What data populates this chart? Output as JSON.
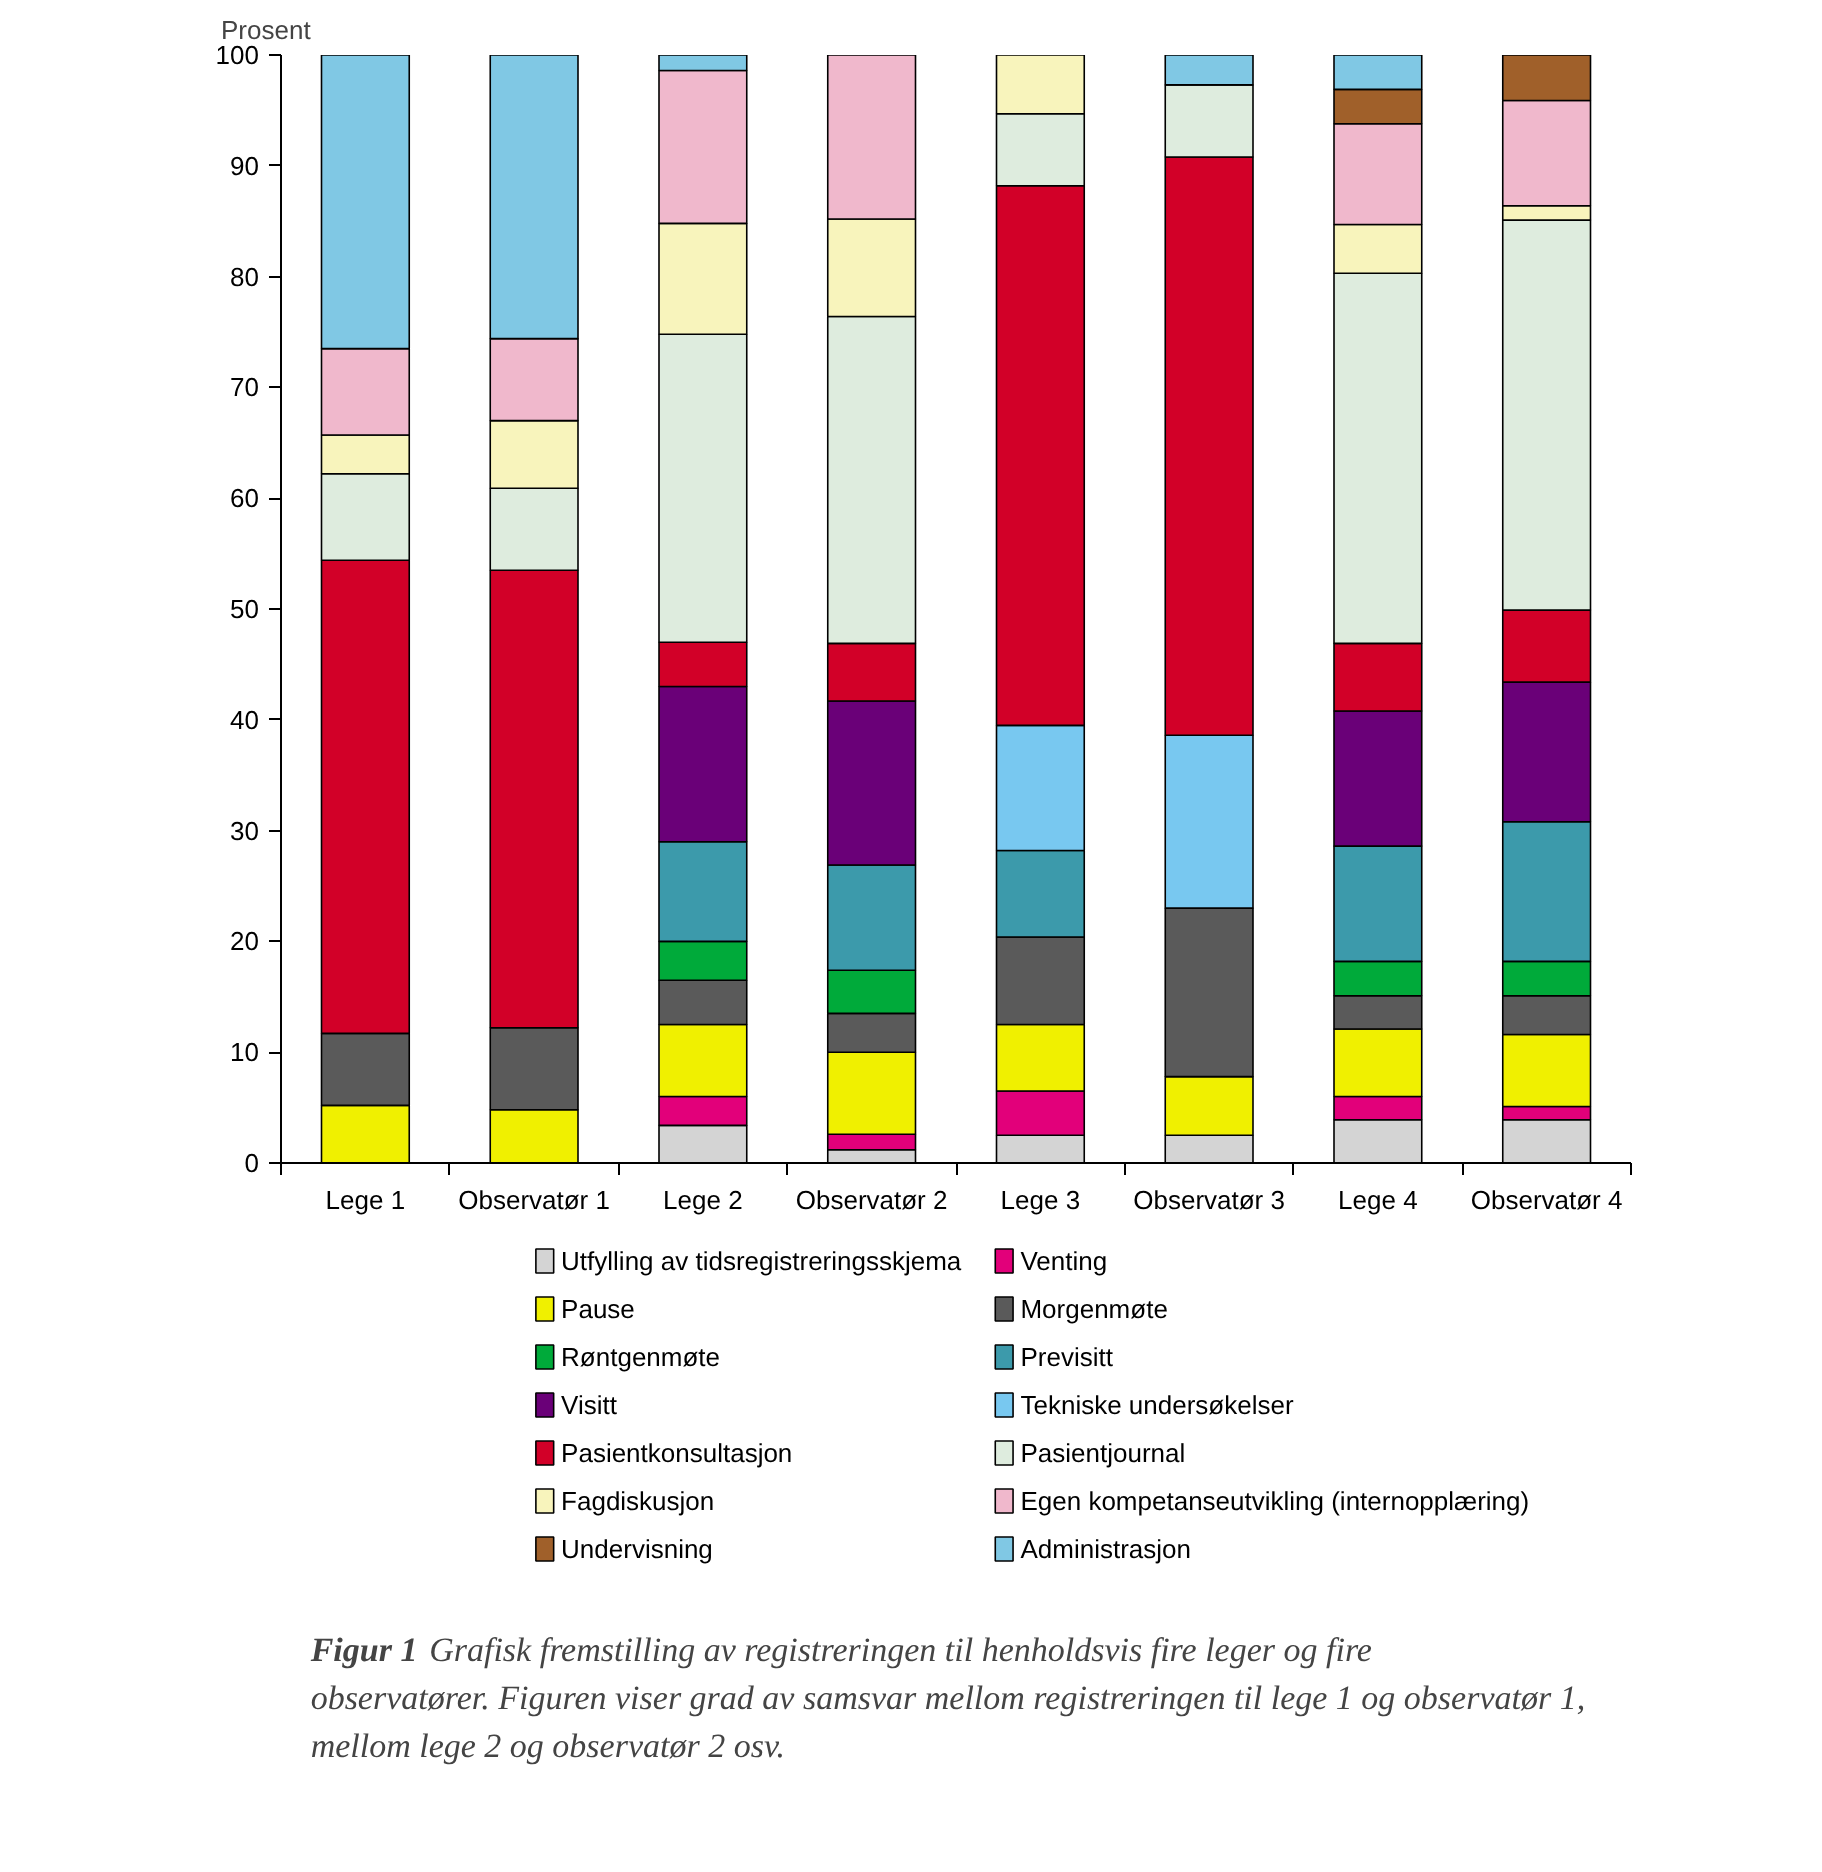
{
  "chart_data": {
    "type": "bar",
    "stacked": true,
    "ylabel": "Prosent",
    "categories": [
      "Lege 1",
      "Observatør 1",
      "Lege 2",
      "Observatør 2",
      "Lege 3",
      "Observatør 3",
      "Lege 4",
      "Observatør 4"
    ],
    "ylim": [
      0,
      100
    ],
    "yticks": [
      0,
      10,
      20,
      30,
      40,
      50,
      60,
      70,
      80,
      90,
      100
    ],
    "grid": false,
    "legend": "bottom",
    "series": [
      {
        "name": "Utfylling av tidsregistreringsskjema",
        "color": "#d4d4d4",
        "values": [
          null,
          null,
          3.4,
          1.2,
          2.5,
          2.5,
          3.9,
          3.9
        ]
      },
      {
        "name": "Venting",
        "color": "#e2007a",
        "values": [
          null,
          null,
          2.6,
          1.4,
          4.0,
          null,
          2.1,
          1.2
        ]
      },
      {
        "name": "Pause",
        "color": "#f0f000",
        "values": [
          5.2,
          4.8,
          6.5,
          7.4,
          6.0,
          5.3,
          6.1,
          6.5
        ]
      },
      {
        "name": "Morgenmøte",
        "color": "#5a5a5a",
        "values": [
          6.5,
          7.4,
          4.0,
          3.5,
          7.9,
          15.2,
          3.0,
          3.5
        ]
      },
      {
        "name": "Røntgenmøte",
        "color": "#00aa3a",
        "values": [
          null,
          null,
          3.5,
          3.9,
          null,
          null,
          3.1,
          3.1
        ]
      },
      {
        "name": "Previsitt",
        "color": "#3c9aab",
        "values": [
          null,
          null,
          9.0,
          9.5,
          7.8,
          null,
          10.4,
          12.6
        ]
      },
      {
        "name": "Visitt",
        "color": "#6a0078",
        "values": [
          null,
          null,
          14.0,
          14.8,
          null,
          null,
          12.2,
          12.6
        ]
      },
      {
        "name": "Tekniske undersøkelser",
        "color": "#78c8f0",
        "values": [
          null,
          null,
          null,
          null,
          11.3,
          15.6,
          null,
          null
        ]
      },
      {
        "name": "Pasientkonsultasjon",
        "color": "#d20028",
        "values": [
          42.7,
          41.3,
          4.0,
          5.2,
          48.7,
          52.2,
          6.1,
          6.5
        ]
      },
      {
        "name": "Pasientjournal",
        "color": "#deecde",
        "values": [
          7.8,
          7.4,
          27.8,
          29.5,
          6.5,
          6.5,
          33.4,
          35.2
        ]
      },
      {
        "name": "Fagdiskusjon",
        "color": "#f8f4bc",
        "values": [
          3.5,
          6.1,
          10.0,
          8.8,
          5.3,
          null,
          4.4,
          1.3
        ]
      },
      {
        "name": "Egen kompetanseutvikling (internopplæring)",
        "color": "#f0b8cc",
        "values": [
          7.8,
          7.4,
          13.8,
          14.8,
          null,
          null,
          9.1,
          9.5
        ]
      },
      {
        "name": "Undervisning",
        "color": "#a0602a",
        "values": [
          null,
          null,
          null,
          null,
          null,
          null,
          3.1,
          4.1
        ]
      },
      {
        "name": "Administrasjon",
        "color": "#80c8e4",
        "values": [
          26.5,
          25.6,
          1.4,
          null,
          null,
          2.7,
          3.1,
          null
        ]
      }
    ],
    "annotations": [
      "Figur 1",
      "Grafisk fremstilling av registreringen til henholdsvis fire leger og fire observatører. Figuren viser grad av samsvar mellom registreringen til lege 1 og observatør 1, mellom lege 2 og observatør 2 osv."
    ]
  }
}
